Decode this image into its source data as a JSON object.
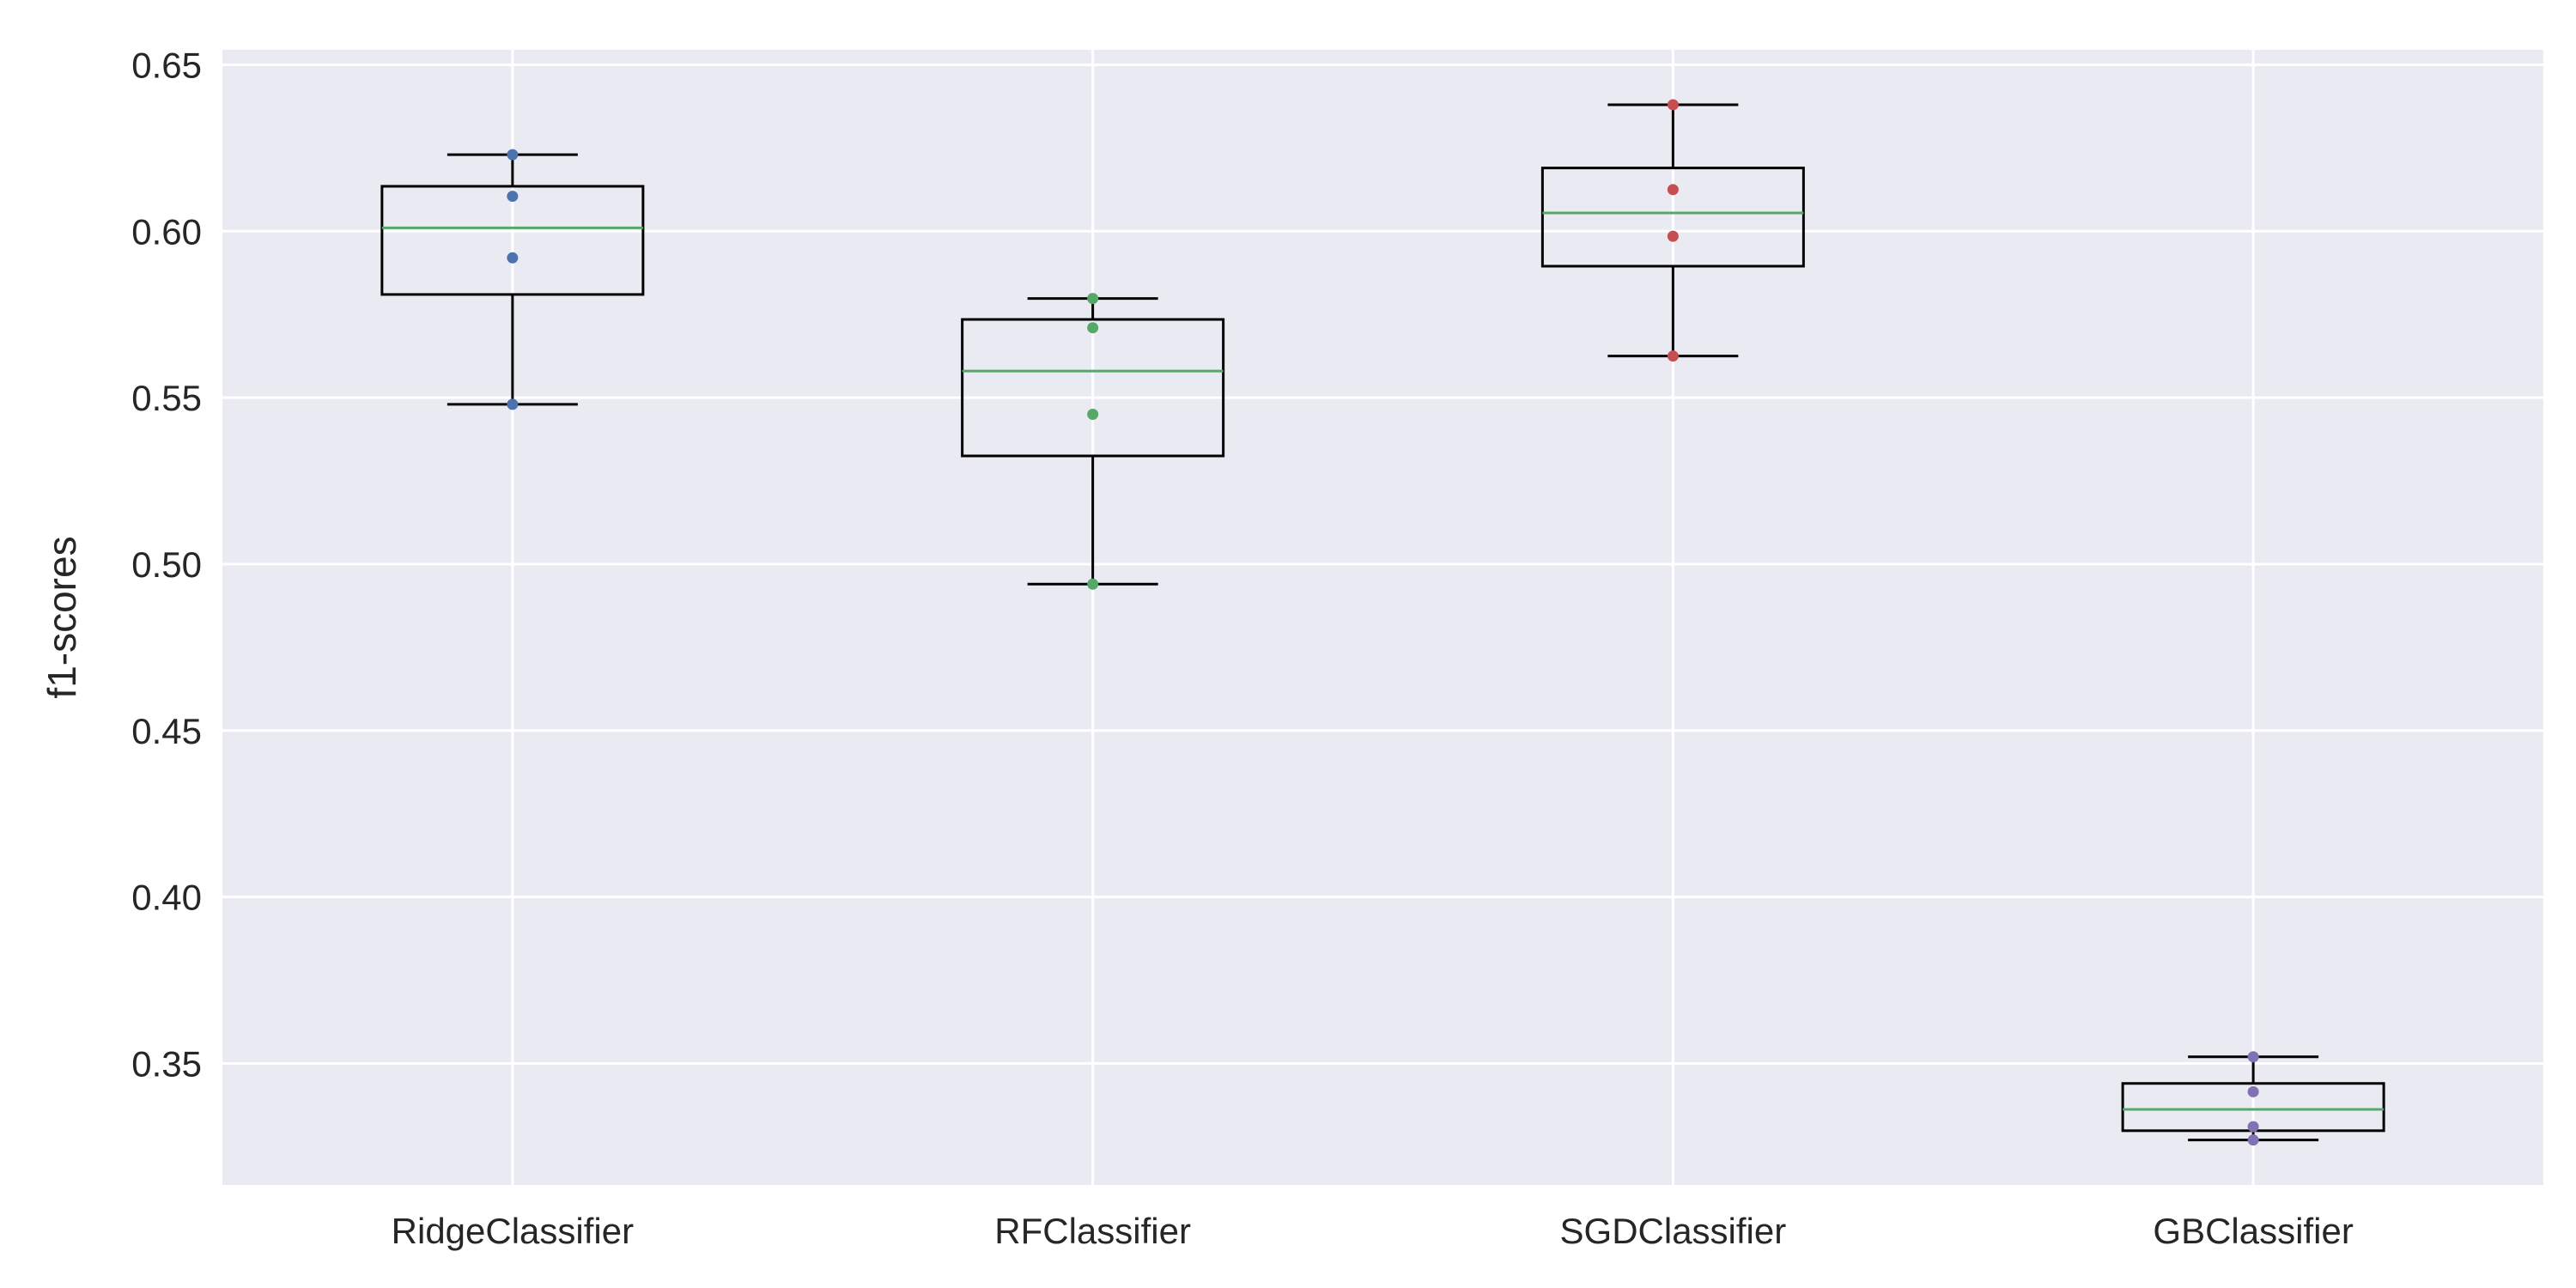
{
  "chart_data": {
    "type": "box",
    "ylabel": "f1-scores",
    "ylim": [
      0.3135,
      0.6545
    ],
    "yticks": [
      0.35,
      0.4,
      0.45,
      0.5,
      0.55,
      0.6,
      0.65
    ],
    "yticklabels": [
      "0.35",
      "0.40",
      "0.45",
      "0.50",
      "0.55",
      "0.60",
      "0.65"
    ],
    "grid": true,
    "categories": [
      "RidgeClassifier",
      "RFClassifier",
      "SGDClassifier",
      "GBClassifier"
    ],
    "boxes": [
      {
        "whisker_low": 0.548,
        "q1": 0.581,
        "median": 0.601,
        "q3": 0.6135,
        "whisker_high": 0.623,
        "point_color": "#4c72b0",
        "points": [
          0.623,
          0.6105,
          0.592,
          0.548
        ]
      },
      {
        "whisker_low": 0.494,
        "q1": 0.5325,
        "median": 0.558,
        "q3": 0.5735,
        "whisker_high": 0.5798,
        "point_color": "#55a868",
        "points": [
          0.5798,
          0.571,
          0.545,
          0.494
        ]
      },
      {
        "whisker_low": 0.5625,
        "q1": 0.5895,
        "median": 0.6055,
        "q3": 0.619,
        "whisker_high": 0.638,
        "point_color": "#c44e52",
        "points": [
          0.638,
          0.6125,
          0.5985,
          0.5625
        ]
      },
      {
        "whisker_low": 0.327,
        "q1": 0.3298,
        "median": 0.3362,
        "q3": 0.344,
        "whisker_high": 0.352,
        "point_color": "#8172b2",
        "points": [
          0.352,
          0.3415,
          0.331,
          0.327
        ]
      }
    ],
    "colors": {
      "plot_background": "#eaeaf2",
      "grid": "#ffffff",
      "box_edge": "#000000",
      "median_line": "#55a868"
    }
  }
}
